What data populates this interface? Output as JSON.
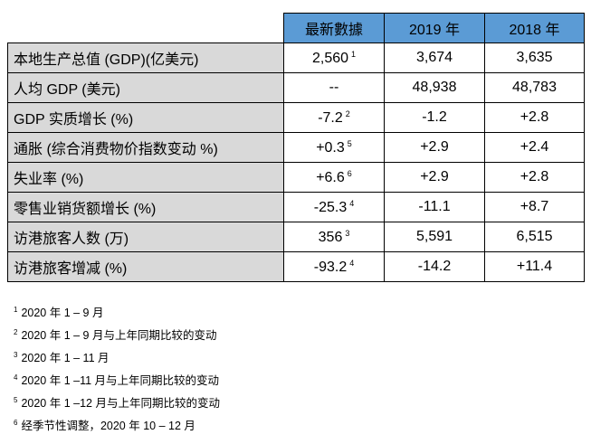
{
  "table": {
    "headers": [
      "最新數據",
      "2019 年",
      "2018 年"
    ],
    "rows": [
      {
        "label": "本地生产总值 (GDP)(亿美元)",
        "latest": "2,560",
        "latest_note": "1",
        "y2019": "3,674",
        "y2018": "3,635"
      },
      {
        "label": "人均 GDP (美元)",
        "latest": "--",
        "latest_note": "",
        "y2019": "48,938",
        "y2018": "48,783"
      },
      {
        "label": "GDP 实质增长 (%)",
        "latest": "-7.2",
        "latest_note": "2",
        "y2019": "-1.2",
        "y2018": "+2.8"
      },
      {
        "label": "通胀 (综合消费物价指数变动 %)",
        "latest": "+0.3",
        "latest_note": "5",
        "y2019": "+2.9",
        "y2018": "+2.4"
      },
      {
        "label": "失业率 (%)",
        "latest": "+6.6",
        "latest_note": "6",
        "y2019": "+2.9",
        "y2018": "+2.8"
      },
      {
        "label": "零售业销货额增长 (%)",
        "latest": "-25.3",
        "latest_note": "4",
        "y2019": "-11.1",
        "y2018": "+8.7"
      },
      {
        "label": "访港旅客人数 (万)",
        "latest": "356",
        "latest_note": "3",
        "y2019": "5,591",
        "y2018": "6,515"
      },
      {
        "label": "访港旅客增减 (%)",
        "latest": "-93.2",
        "latest_note": "4",
        "y2019": "-14.2",
        "y2018": "+11.4"
      }
    ]
  },
  "notes": [
    {
      "mark": "1",
      "text": "2020 年 1 – 9 月"
    },
    {
      "mark": "2",
      "text": "2020 年 1 – 9 月与上年同期比较的变动"
    },
    {
      "mark": "3",
      "text": "2020 年 1 – 11 月"
    },
    {
      "mark": "4",
      "text": "2020 年 1 –11 月与上年同期比较的变动"
    },
    {
      "mark": "5",
      "text": "2020 年 1 –12 月与上年同期比较的变动"
    },
    {
      "mark": "6",
      "text": "经季节性调整，2020 年 10 – 12 月"
    }
  ],
  "colors": {
    "header_bg": "#5b9bd5",
    "label_bg": "#d9d9d9",
    "border": "#000000"
  }
}
